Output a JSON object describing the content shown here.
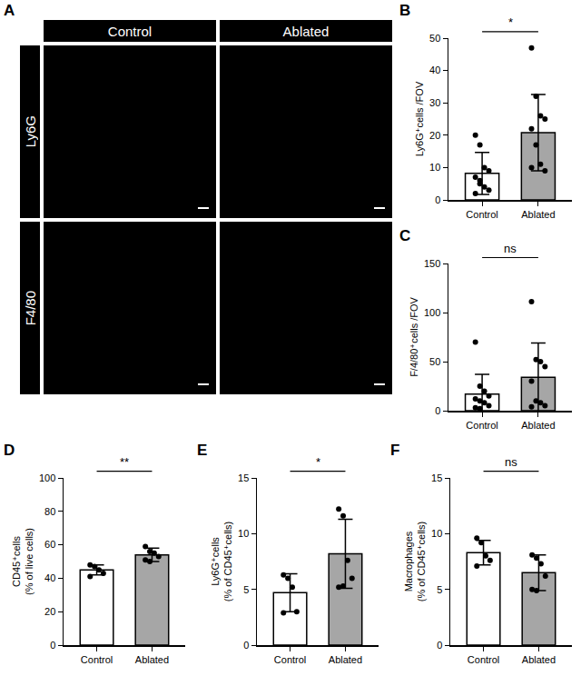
{
  "image_panel": {
    "panel": "A",
    "columns": [
      "Control",
      "Ablated"
    ],
    "rows": [
      "Ly6G",
      "F4/80"
    ]
  },
  "chart_data": [
    {
      "panel": "B",
      "type": "bar",
      "categories": [
        "Control",
        "Ablated"
      ],
      "values": [
        8.2,
        20.8
      ],
      "error": [
        6.5,
        11.8
      ],
      "points": [
        [
          20,
          17,
          10,
          9,
          7,
          5,
          4,
          3,
          2,
          6
        ],
        [
          47,
          32,
          26,
          25,
          22,
          17,
          11,
          9,
          10
        ]
      ],
      "colors": [
        "#ffffff",
        "#a6a6a6"
      ],
      "marker": "circle",
      "ylabel": "Ly6G⁺cells /FOV",
      "ylim": [
        0,
        50
      ],
      "yticks": [
        0,
        10,
        20,
        30,
        40,
        50
      ],
      "significance": "*",
      "grid": false
    },
    {
      "panel": "C",
      "type": "bar",
      "categories": [
        "Control",
        "Ablated"
      ],
      "values": [
        17,
        34
      ],
      "error": [
        20,
        35
      ],
      "points": [
        [
          70,
          25,
          20,
          15,
          12,
          10,
          8,
          5,
          3,
          2
        ],
        [
          111,
          52,
          50,
          45,
          30,
          10,
          8,
          5,
          4
        ]
      ],
      "colors": [
        "#ffffff",
        "#a6a6a6"
      ],
      "marker": "circle",
      "ylabel": "F/4/80⁺cells /FOV",
      "ylim": [
        0,
        150
      ],
      "yticks": [
        0,
        50,
        100,
        150
      ],
      "significance": "ns",
      "grid": false
    },
    {
      "panel": "D",
      "type": "bar",
      "categories": [
        "Control",
        "Ablated"
      ],
      "values": [
        45,
        54
      ],
      "error": [
        3,
        4
      ],
      "points": [
        [
          48,
          47,
          45,
          43,
          41
        ],
        [
          59,
          56,
          55,
          53,
          51,
          50
        ]
      ],
      "colors": [
        "#ffffff",
        "#a6a6a6"
      ],
      "marker": "circle",
      "ylabel": "CD45⁺cells (% of live cells)",
      "ylim": [
        0,
        100
      ],
      "yticks": [
        0,
        20,
        40,
        60,
        80,
        100
      ],
      "significance": "**",
      "grid": false
    },
    {
      "panel": "E",
      "type": "bar",
      "categories": [
        "Control",
        "Ablated"
      ],
      "values": [
        4.7,
        8.2
      ],
      "error": [
        1.7,
        3.1
      ],
      "points": [
        [
          6.3,
          6.0,
          5.2,
          3.0,
          2.9
        ],
        [
          12.2,
          11.6,
          7.6,
          6.0,
          5.2,
          5.3
        ]
      ],
      "colors": [
        "#ffffff",
        "#a6a6a6"
      ],
      "marker": "circle",
      "ylabel": "Ly6G⁺cells (% of CD45⁺cells)",
      "ylim": [
        0,
        15
      ],
      "yticks": [
        0,
        5,
        10,
        15
      ],
      "significance": "*",
      "grid": false
    },
    {
      "panel": "F",
      "type": "bar",
      "categories": [
        "Control",
        "Ablated"
      ],
      "values": [
        8.3,
        6.5
      ],
      "error": [
        1.1,
        1.6
      ],
      "points": [
        [
          9.6,
          9.2,
          8.0,
          7.6,
          7.1
        ],
        [
          8.1,
          7.8,
          7.3,
          6.2,
          5.0,
          4.9
        ]
      ],
      "colors": [
        "#ffffff",
        "#a6a6a6"
      ],
      "marker": "circle",
      "ylabel": "Macrophages (% of CD45⁺cells)",
      "ylim": [
        0,
        15
      ],
      "yticks": [
        0,
        5,
        10,
        15
      ],
      "significance": "ns",
      "grid": false
    }
  ]
}
